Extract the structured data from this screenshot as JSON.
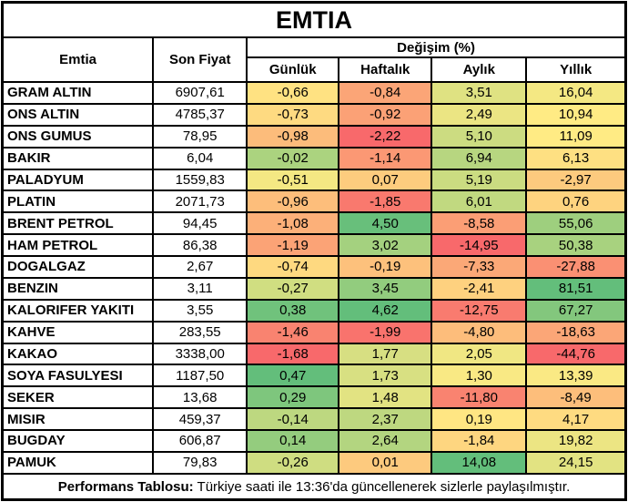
{
  "title": "EMTIA",
  "header": {
    "commodity": "Emtia",
    "last_price": "Son Fiyat",
    "change_group": "Değişim (%)",
    "sub_columns": [
      "Günlük",
      "Haftalık",
      "Aylık",
      "Yıllık"
    ]
  },
  "color_scale": {
    "min_color": "#F8696B",
    "mid_color": "#FFEB84",
    "max_color": "#63BE7B",
    "midpoint": "percentile-50",
    "scope": "per-column"
  },
  "footer": {
    "bold_prefix": "Performans Tablosu:",
    "text": " Türkiye saati ile 13:36'da güncellenerek sizlerle paylaşılmıştır."
  },
  "chart_data": {
    "type": "table",
    "title": "EMTIA",
    "columns": [
      "Emtia",
      "Son Fiyat",
      "Günlük",
      "Haftalık",
      "Aylık",
      "Yıllık"
    ],
    "change_columns_group": "Değişim (%)",
    "rows": [
      [
        "GRAM ALTIN",
        "6907,61",
        "-0,66",
        "-0,84",
        "3,51",
        "16,04"
      ],
      [
        "ONS ALTIN",
        "4785,37",
        "-0,73",
        "-0,92",
        "2,49",
        "10,94"
      ],
      [
        "ONS GUMUS",
        "78,95",
        "-0,98",
        "-2,22",
        "5,10",
        "11,09"
      ],
      [
        "BAKIR",
        "6,04",
        "-0,02",
        "-1,14",
        "6,94",
        "6,13"
      ],
      [
        "PALADYUM",
        "1559,83",
        "-0,51",
        "0,07",
        "5,19",
        "-2,97"
      ],
      [
        "PLATIN",
        "2071,73",
        "-0,96",
        "-1,85",
        "6,01",
        "0,76"
      ],
      [
        "BRENT PETROL",
        "94,45",
        "-1,08",
        "4,50",
        "-8,58",
        "55,06"
      ],
      [
        "HAM PETROL",
        "86,38",
        "-1,19",
        "3,02",
        "-14,95",
        "50,38"
      ],
      [
        "DOGALGAZ",
        "2,67",
        "-0,74",
        "-0,19",
        "-7,33",
        "-27,88"
      ],
      [
        "BENZIN",
        "3,11",
        "-0,27",
        "3,45",
        "-2,41",
        "81,51"
      ],
      [
        "KALORIFER YAKITI",
        "3,55",
        "0,38",
        "4,62",
        "-12,75",
        "67,27"
      ],
      [
        "KAHVE",
        "283,55",
        "-1,46",
        "-1,99",
        "-4,80",
        "-18,63"
      ],
      [
        "KAKAO",
        "3338,00",
        "-1,68",
        "1,77",
        "2,05",
        "-44,76"
      ],
      [
        "SOYA FASULYESI",
        "1187,50",
        "0,47",
        "1,73",
        "1,30",
        "13,39"
      ],
      [
        "SEKER",
        "13,68",
        "0,29",
        "1,48",
        "-11,80",
        "-8,49"
      ],
      [
        "MISIR",
        "459,37",
        "-0,14",
        "2,37",
        "0,19",
        "4,17"
      ],
      [
        "BUGDAY",
        "606,87",
        "0,14",
        "2,64",
        "-1,84",
        "19,82"
      ],
      [
        "PAMUK",
        "79,83",
        "-0,26",
        "0,01",
        "14,08",
        "24,15"
      ]
    ]
  }
}
